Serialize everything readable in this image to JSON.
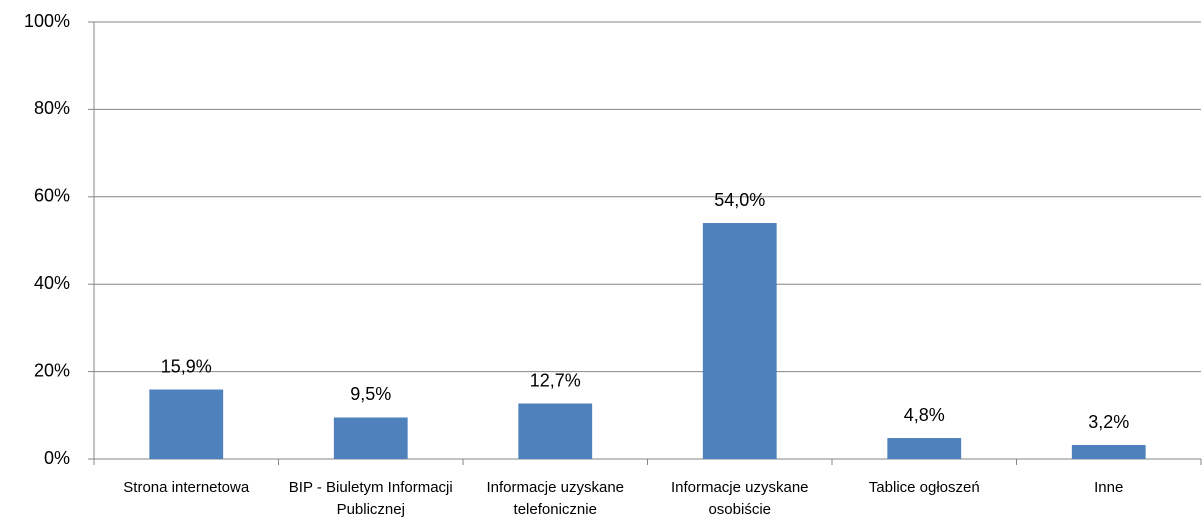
{
  "chart_data": {
    "type": "bar",
    "categories": [
      "Strona internetowa",
      "BIP - Biuletym Informacji Publicznej",
      "Informacje uzyskane telefonicznie",
      "Informacje uzyskane osobiście",
      "Tablice ogłoszeń",
      "Inne"
    ],
    "values": [
      15.9,
      9.5,
      12.7,
      54.0,
      4.8,
      3.2
    ],
    "value_labels": [
      "15,9%",
      "9,5%",
      "12,7%",
      "54,0%",
      "4,8%",
      "3,2%"
    ],
    "color": "#4f81bd",
    "ylim": [
      0,
      100
    ],
    "yticks": [
      {
        "value": 0,
        "label": "0%"
      },
      {
        "value": 20,
        "label": "20%"
      },
      {
        "value": 40,
        "label": "40%"
      },
      {
        "value": 60,
        "label": "60%"
      },
      {
        "value": 80,
        "label": "80%"
      },
      {
        "value": 100,
        "label": "100%"
      }
    ],
    "grid": true
  }
}
